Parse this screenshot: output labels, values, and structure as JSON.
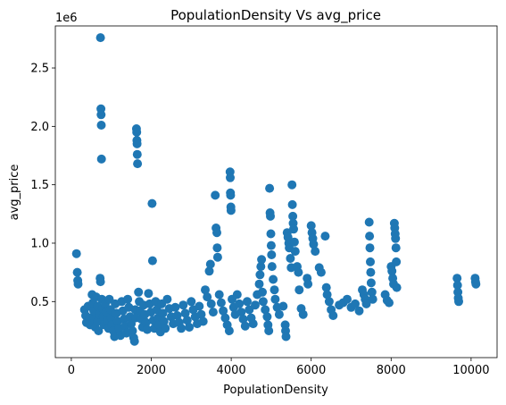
{
  "chart_data": {
    "type": "scatter",
    "title": "PopulationDensity Vs avg_price",
    "xlabel": "PopulationDensity",
    "ylabel": "avg_price",
    "y_offset_label": "1e6",
    "xlim": [
      -400,
      10650
    ],
    "ylim": [
      20000,
      2860000
    ],
    "xticks": [
      0,
      2000,
      4000,
      6000,
      8000,
      10000
    ],
    "xtick_labels": [
      "0",
      "2000",
      "4000",
      "6000",
      "8000",
      "10000"
    ],
    "yticks": [
      500000,
      1000000,
      1500000,
      2000000,
      2500000
    ],
    "ytick_labels": [
      "0.5",
      "1.0",
      "1.5",
      "2.0",
      "2.5"
    ],
    "grid": false,
    "marker_color": "#1f77b4",
    "series": [
      {
        "points": [
          [
            130,
            910000
          ],
          [
            150,
            750000
          ],
          [
            160,
            680000
          ],
          [
            170,
            650000
          ],
          [
            330,
            430000
          ],
          [
            360,
            380000
          ],
          [
            380,
            320000
          ],
          [
            420,
            460000
          ],
          [
            450,
            360000
          ],
          [
            470,
            300000
          ],
          [
            520,
            560000
          ],
          [
            540,
            490000
          ],
          [
            560,
            420000
          ],
          [
            580,
            350000
          ],
          [
            600,
            280000
          ],
          [
            620,
            540000
          ],
          [
            650,
            460000
          ],
          [
            660,
            330000
          ],
          [
            680,
            250000
          ],
          [
            700,
            390000
          ],
          [
            730,
            2760000
          ],
          [
            740,
            2150000
          ],
          [
            745,
            2100000
          ],
          [
            750,
            2010000
          ],
          [
            755,
            1720000
          ],
          [
            720,
            700000
          ],
          [
            730,
            670000
          ],
          [
            760,
            520000
          ],
          [
            780,
            440000
          ],
          [
            800,
            370000
          ],
          [
            820,
            300000
          ],
          [
            850,
            480000
          ],
          [
            870,
            410000
          ],
          [
            900,
            340000
          ],
          [
            930,
            270000
          ],
          [
            950,
            520000
          ],
          [
            980,
            430000
          ],
          [
            1000,
            360000
          ],
          [
            1020,
            300000
          ],
          [
            1050,
            250000
          ],
          [
            1080,
            200000
          ],
          [
            1100,
            480000
          ],
          [
            1130,
            400000
          ],
          [
            1160,
            330000
          ],
          [
            1200,
            270000
          ],
          [
            1230,
            210000
          ],
          [
            1260,
            500000
          ],
          [
            1290,
            420000
          ],
          [
            1320,
            350000
          ],
          [
            1350,
            290000
          ],
          [
            1380,
            230000
          ],
          [
            1410,
            520000
          ],
          [
            1440,
            450000
          ],
          [
            1470,
            370000
          ],
          [
            1500,
            310000
          ],
          [
            1530,
            250000
          ],
          [
            1560,
            190000
          ],
          [
            1580,
            160000
          ],
          [
            1600,
            430000
          ],
          [
            1610,
            360000
          ],
          [
            1630,
            1980000
          ],
          [
            1635,
            1950000
          ],
          [
            1640,
            1880000
          ],
          [
            1645,
            1850000
          ],
          [
            1650,
            1760000
          ],
          [
            1655,
            1680000
          ],
          [
            1680,
            580000
          ],
          [
            1700,
            500000
          ],
          [
            1720,
            420000
          ],
          [
            1750,
            350000
          ],
          [
            1780,
            280000
          ],
          [
            1810,
            470000
          ],
          [
            1840,
            390000
          ],
          [
            1870,
            320000
          ],
          [
            1900,
            260000
          ],
          [
            1930,
            570000
          ],
          [
            1960,
            480000
          ],
          [
            1990,
            410000
          ],
          [
            2020,
            1340000
          ],
          [
            2030,
            850000
          ],
          [
            2050,
            340000
          ],
          [
            2080,
            270000
          ],
          [
            2110,
            500000
          ],
          [
            2140,
            430000
          ],
          [
            2170,
            360000
          ],
          [
            2200,
            300000
          ],
          [
            2230,
            240000
          ],
          [
            2260,
            480000
          ],
          [
            2290,
            400000
          ],
          [
            2320,
            330000
          ],
          [
            2350,
            270000
          ],
          [
            2400,
            520000
          ],
          [
            2450,
            440000
          ],
          [
            2500,
            370000
          ],
          [
            2550,
            310000
          ],
          [
            2600,
            450000
          ],
          [
            2650,
            380000
          ],
          [
            2700,
            320000
          ],
          [
            2750,
            270000
          ],
          [
            2800,
            470000
          ],
          [
            2850,
            400000
          ],
          [
            2900,
            340000
          ],
          [
            2950,
            280000
          ],
          [
            3000,
            500000
          ],
          [
            3050,
            430000
          ],
          [
            3100,
            370000
          ],
          [
            3150,
            310000
          ],
          [
            3200,
            460000
          ],
          [
            3250,
            390000
          ],
          [
            3300,
            330000
          ],
          [
            3350,
            600000
          ],
          [
            3400,
            540000
          ],
          [
            3450,
            760000
          ],
          [
            3480,
            820000
          ],
          [
            3500,
            480000
          ],
          [
            3550,
            410000
          ],
          [
            3600,
            1410000
          ],
          [
            3620,
            1130000
          ],
          [
            3640,
            1090000
          ],
          [
            3650,
            960000
          ],
          [
            3660,
            880000
          ],
          [
            3700,
            560000
          ],
          [
            3750,
            490000
          ],
          [
            3800,
            420000
          ],
          [
            3850,
            360000
          ],
          [
            3900,
            300000
          ],
          [
            3950,
            250000
          ],
          [
            3970,
            1610000
          ],
          [
            3975,
            1560000
          ],
          [
            3980,
            1430000
          ],
          [
            3985,
            1410000
          ],
          [
            3990,
            1310000
          ],
          [
            3995,
            1280000
          ],
          [
            4020,
            520000
          ],
          [
            4060,
            450000
          ],
          [
            4100,
            390000
          ],
          [
            4150,
            560000
          ],
          [
            4200,
            480000
          ],
          [
            4250,
            410000
          ],
          [
            4300,
            350000
          ],
          [
            4350,
            290000
          ],
          [
            4400,
            500000
          ],
          [
            4450,
            430000
          ],
          [
            4500,
            360000
          ],
          [
            4550,
            310000
          ],
          [
            4600,
            470000
          ],
          [
            4650,
            560000
          ],
          [
            4700,
            650000
          ],
          [
            4720,
            730000
          ],
          [
            4740,
            800000
          ],
          [
            4760,
            860000
          ],
          [
            4780,
            580000
          ],
          [
            4800,
            500000
          ],
          [
            4850,
            430000
          ],
          [
            4900,
            370000
          ],
          [
            4920,
            300000
          ],
          [
            4940,
            250000
          ],
          [
            4960,
            1470000
          ],
          [
            4970,
            1260000
          ],
          [
            4980,
            1230000
          ],
          [
            4990,
            1080000
          ],
          [
            5000,
            980000
          ],
          [
            5010,
            900000
          ],
          [
            5020,
            800000
          ],
          [
            5050,
            690000
          ],
          [
            5080,
            600000
          ],
          [
            5100,
            520000
          ],
          [
            5150,
            450000
          ],
          [
            5200,
            390000
          ],
          [
            5300,
            460000
          ],
          [
            5350,
            300000
          ],
          [
            5360,
            250000
          ],
          [
            5370,
            200000
          ],
          [
            5400,
            1090000
          ],
          [
            5420,
            1050000
          ],
          [
            5440,
            1000000
          ],
          [
            5450,
            960000
          ],
          [
            5480,
            870000
          ],
          [
            5500,
            790000
          ],
          [
            5520,
            1500000
          ],
          [
            5530,
            1330000
          ],
          [
            5540,
            1230000
          ],
          [
            5550,
            1170000
          ],
          [
            5560,
            1120000
          ],
          [
            5580,
            1010000
          ],
          [
            5600,
            930000
          ],
          [
            5650,
            800000
          ],
          [
            5680,
            750000
          ],
          [
            5700,
            600000
          ],
          [
            5750,
            440000
          ],
          [
            5800,
            390000
          ],
          [
            5900,
            700000
          ],
          [
            5920,
            650000
          ],
          [
            6000,
            1150000
          ],
          [
            6020,
            1090000
          ],
          [
            6040,
            1040000
          ],
          [
            6060,
            990000
          ],
          [
            6100,
            930000
          ],
          [
            6200,
            790000
          ],
          [
            6250,
            750000
          ],
          [
            6350,
            1060000
          ],
          [
            6380,
            620000
          ],
          [
            6400,
            560000
          ],
          [
            6450,
            500000
          ],
          [
            6500,
            430000
          ],
          [
            6550,
            380000
          ],
          [
            6700,
            470000
          ],
          [
            6800,
            490000
          ],
          [
            6900,
            520000
          ],
          [
            7000,
            450000
          ],
          [
            7100,
            480000
          ],
          [
            7200,
            420000
          ],
          [
            7280,
            600000
          ],
          [
            7320,
            560000
          ],
          [
            7350,
            520000
          ],
          [
            7380,
            480000
          ],
          [
            7450,
            1180000
          ],
          [
            7460,
            1060000
          ],
          [
            7470,
            960000
          ],
          [
            7480,
            840000
          ],
          [
            7490,
            750000
          ],
          [
            7500,
            660000
          ],
          [
            7520,
            580000
          ],
          [
            7540,
            520000
          ],
          [
            7850,
            560000
          ],
          [
            7900,
            510000
          ],
          [
            7950,
            490000
          ],
          [
            8000,
            800000
          ],
          [
            8020,
            760000
          ],
          [
            8040,
            700000
          ],
          [
            8060,
            650000
          ],
          [
            8080,
            1170000
          ],
          [
            8090,
            1130000
          ],
          [
            8100,
            1080000
          ],
          [
            8110,
            1040000
          ],
          [
            8120,
            960000
          ],
          [
            8130,
            840000
          ],
          [
            8140,
            620000
          ],
          [
            9650,
            700000
          ],
          [
            9660,
            640000
          ],
          [
            9670,
            580000
          ],
          [
            9680,
            530000
          ],
          [
            9690,
            500000
          ],
          [
            10100,
            700000
          ],
          [
            10110,
            670000
          ],
          [
            10120,
            650000
          ]
        ]
      }
    ]
  }
}
